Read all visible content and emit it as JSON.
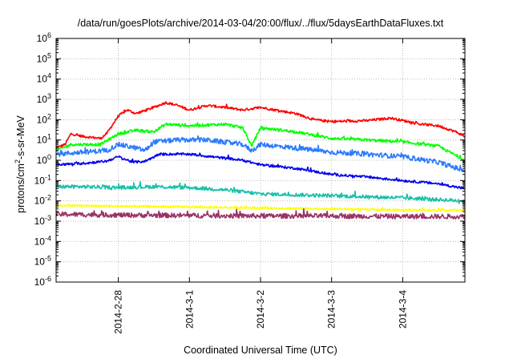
{
  "chart_data": {
    "type": "line",
    "title": "/data/run/goesPlots/archive/2014-03-04/20:00/flux/../flux/5daysEarthDataFluxes.txt",
    "xlabel": "Coordinated Universal Time (UTC)",
    "ylabel": {
      "prefix": "protons/cm",
      "sup": "2",
      "suffix": "-s-sr-MeV"
    },
    "y_scale": "log",
    "ylim": [
      1e-06,
      1000000.0
    ],
    "y_ticks": [
      {
        "value": 1e-06,
        "base": "10",
        "exp": "-6"
      },
      {
        "value": 1e-05,
        "base": "10",
        "exp": "-5"
      },
      {
        "value": 0.0001,
        "base": "10",
        "exp": "-4"
      },
      {
        "value": 0.001,
        "base": "10",
        "exp": "-3"
      },
      {
        "value": 0.01,
        "base": "10",
        "exp": "-2"
      },
      {
        "value": 0.1,
        "base": "10",
        "exp": "-1"
      },
      {
        "value": 1.0,
        "base": "10",
        "exp": "0"
      },
      {
        "value": 10.0,
        "base": "10",
        "exp": "1"
      },
      {
        "value": 100.0,
        "base": "10",
        "exp": "2"
      },
      {
        "value": 1000.0,
        "base": "10",
        "exp": "3"
      },
      {
        "value": 10000.0,
        "base": "10",
        "exp": "4"
      },
      {
        "value": 100000.0,
        "base": "10",
        "exp": "5"
      },
      {
        "value": 1000000.0,
        "base": "10",
        "exp": "6"
      }
    ],
    "xlim": [
      "2014-02-27T03:00",
      "2014-03-04T21:00"
    ],
    "x_ticks": [
      {
        "value": "2014-02-28T00:00",
        "label": "2014-2-28"
      },
      {
        "value": "2014-03-01T00:00",
        "label": "2014-3-1"
      },
      {
        "value": "2014-03-02T00:00",
        "label": "2014-3-2"
      },
      {
        "value": "2014-03-03T00:00",
        "label": "2014-3-3"
      },
      {
        "value": "2014-03-04T00:00",
        "label": "2014-3-4"
      }
    ],
    "grid": true,
    "series": [
      {
        "color": "#ff0000",
        "noise": 0.06,
        "points": [
          [
            "2014-02-27T03:00",
            4
          ],
          [
            "2014-02-27T06:00",
            6
          ],
          [
            "2014-02-27T08:00",
            20
          ],
          [
            "2014-02-27T12:00",
            15
          ],
          [
            "2014-02-27T18:00",
            12
          ],
          [
            "2014-02-27T20:00",
            20
          ],
          [
            "2014-02-28T00:00",
            150
          ],
          [
            "2014-02-28T03:00",
            300
          ],
          [
            "2014-02-28T06:00",
            200
          ],
          [
            "2014-02-28T12:00",
            400
          ],
          [
            "2014-02-28T16:00",
            700
          ],
          [
            "2014-02-28T20:00",
            500
          ],
          [
            "2014-03-01T00:00",
            300
          ],
          [
            "2014-03-01T06:00",
            500
          ],
          [
            "2014-03-01T12:00",
            400
          ],
          [
            "2014-03-01T18:00",
            300
          ],
          [
            "2014-03-02T00:00",
            400
          ],
          [
            "2014-03-02T12:00",
            200
          ],
          [
            "2014-03-02T18:00",
            100
          ],
          [
            "2014-03-03T00:00",
            80
          ],
          [
            "2014-03-03T12:00",
            90
          ],
          [
            "2014-03-03T20:00",
            120
          ],
          [
            "2014-03-04T06:00",
            60
          ],
          [
            "2014-03-04T12:00",
            50
          ],
          [
            "2014-03-04T18:00",
            25
          ],
          [
            "2014-03-04T21:00",
            15
          ]
        ]
      },
      {
        "color": "#00ff00",
        "noise": 0.07,
        "points": [
          [
            "2014-02-27T03:00",
            3
          ],
          [
            "2014-02-27T08:00",
            6
          ],
          [
            "2014-02-27T18:00",
            6
          ],
          [
            "2014-02-28T00:00",
            20
          ],
          [
            "2014-02-28T06:00",
            30
          ],
          [
            "2014-02-28T12:00",
            25
          ],
          [
            "2014-02-28T16:00",
            60
          ],
          [
            "2014-03-01T00:00",
            50
          ],
          [
            "2014-03-01T12:00",
            60
          ],
          [
            "2014-03-01T18:00",
            40
          ],
          [
            "2014-03-01T21:00",
            5
          ],
          [
            "2014-03-02T00:00",
            40
          ],
          [
            "2014-03-02T12:00",
            25
          ],
          [
            "2014-03-03T00:00",
            12
          ],
          [
            "2014-03-03T12:00",
            10
          ],
          [
            "2014-03-04T00:00",
            8
          ],
          [
            "2014-03-04T12:00",
            5
          ],
          [
            "2014-03-04T21:00",
            1
          ]
        ]
      },
      {
        "color": "#2b7bff",
        "noise": 0.12,
        "points": [
          [
            "2014-02-27T03:00",
            2
          ],
          [
            "2014-02-27T12:00",
            2.5
          ],
          [
            "2014-02-27T20:00",
            3
          ],
          [
            "2014-02-28T00:00",
            6
          ],
          [
            "2014-02-28T06:00",
            4
          ],
          [
            "2014-02-28T09:00",
            3
          ],
          [
            "2014-02-28T12:00",
            8
          ],
          [
            "2014-02-28T20:00",
            10
          ],
          [
            "2014-03-01T06:00",
            10
          ],
          [
            "2014-03-01T18:00",
            6
          ],
          [
            "2014-03-01T21:00",
            3
          ],
          [
            "2014-03-02T00:00",
            6
          ],
          [
            "2014-03-02T12:00",
            4
          ],
          [
            "2014-03-03T00:00",
            2.5
          ],
          [
            "2014-03-03T12:00",
            2
          ],
          [
            "2014-03-04T00:00",
            1.5
          ],
          [
            "2014-03-04T12:00",
            0.8
          ],
          [
            "2014-03-04T21:00",
            0.3
          ]
        ]
      },
      {
        "color": "#0000ee",
        "noise": 0.06,
        "points": [
          [
            "2014-02-27T03:00",
            0.6
          ],
          [
            "2014-02-27T12:00",
            0.7
          ],
          [
            "2014-02-27T20:00",
            0.9
          ],
          [
            "2014-02-28T00:00",
            1.5
          ],
          [
            "2014-02-28T05:00",
            0.8
          ],
          [
            "2014-02-28T09:00",
            0.9
          ],
          [
            "2014-02-28T14:00",
            2
          ],
          [
            "2014-03-01T00:00",
            2
          ],
          [
            "2014-03-01T18:00",
            1
          ],
          [
            "2014-03-02T00:00",
            0.6
          ],
          [
            "2014-03-02T12:00",
            0.4
          ],
          [
            "2014-03-03T00:00",
            0.2
          ],
          [
            "2014-03-03T12:00",
            0.15
          ],
          [
            "2014-03-04T00:00",
            0.1
          ],
          [
            "2014-03-04T12:00",
            0.07
          ],
          [
            "2014-03-04T21:00",
            0.04
          ]
        ]
      },
      {
        "color": "#17c0a8",
        "noise": 0.09,
        "points": [
          [
            "2014-02-27T03:00",
            0.05
          ],
          [
            "2014-02-27T12:00",
            0.05
          ],
          [
            "2014-02-28T00:00",
            0.045
          ],
          [
            "2014-02-28T12:00",
            0.05
          ],
          [
            "2014-03-01T00:00",
            0.045
          ],
          [
            "2014-03-01T12:00",
            0.035
          ],
          [
            "2014-03-02T00:00",
            0.022
          ],
          [
            "2014-03-03T00:00",
            0.018
          ],
          [
            "2014-03-04T00:00",
            0.014
          ],
          [
            "2014-03-04T21:00",
            0.01
          ]
        ]
      },
      {
        "color": "#ffff00",
        "noise": 0.05,
        "points": [
          [
            "2014-02-27T03:00",
            0.006
          ],
          [
            "2014-02-28T00:00",
            0.0055
          ],
          [
            "2014-03-01T00:00",
            0.005
          ],
          [
            "2014-03-02T00:00",
            0.0045
          ],
          [
            "2014-03-03T00:00",
            0.004
          ],
          [
            "2014-03-04T00:00",
            0.0035
          ],
          [
            "2014-03-04T21:00",
            0.0035
          ]
        ]
      },
      {
        "color": "#993366",
        "noise": 0.12,
        "points": [
          [
            "2014-02-27T03:00",
            0.0022
          ],
          [
            "2014-02-28T00:00",
            0.002
          ],
          [
            "2014-03-01T00:00",
            0.0019
          ],
          [
            "2014-03-02T00:00",
            0.0018
          ],
          [
            "2014-03-03T00:00",
            0.0018
          ],
          [
            "2014-03-04T00:00",
            0.0017
          ],
          [
            "2014-03-04T21:00",
            0.0017
          ]
        ]
      }
    ]
  }
}
